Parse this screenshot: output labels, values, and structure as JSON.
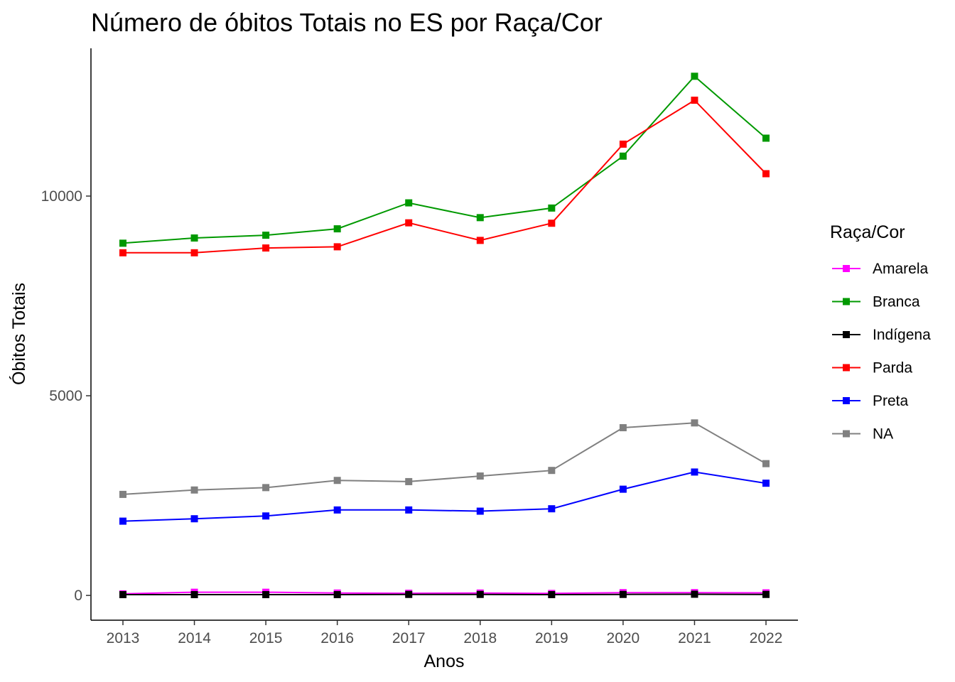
{
  "chart_data": {
    "type": "line",
    "title": "Número de óbitos Totais no ES por Raça/Cor",
    "xlabel": "Anos",
    "ylabel": "Óbitos Totais",
    "x": [
      2013,
      2014,
      2015,
      2016,
      2017,
      2018,
      2019,
      2020,
      2021,
      2022
    ],
    "y_ticks": [
      0,
      5000,
      10000
    ],
    "ylim": [
      -620,
      13700
    ],
    "grid": false,
    "legend": {
      "title": "Raça/Cor",
      "position": "right"
    },
    "series": [
      {
        "name": "Amarela",
        "color": "#FF00FF",
        "values": [
          40,
          80,
          80,
          60,
          55,
          60,
          50,
          70,
          70,
          65
        ]
      },
      {
        "name": "Branca",
        "color": "#009900",
        "values": [
          8820,
          8950,
          9020,
          9180,
          9830,
          9460,
          9700,
          11000,
          13000,
          11450
        ]
      },
      {
        "name": "Indígena",
        "color": "#000000",
        "values": [
          20,
          20,
          20,
          20,
          25,
          25,
          20,
          25,
          30,
          25
        ]
      },
      {
        "name": "Parda",
        "color": "#FF0000",
        "values": [
          8580,
          8580,
          8700,
          8730,
          9330,
          8890,
          9320,
          11300,
          12400,
          10560
        ]
      },
      {
        "name": "Preta",
        "color": "#0000FF",
        "values": [
          1860,
          1920,
          1990,
          2140,
          2140,
          2110,
          2170,
          2660,
          3090,
          2810
        ]
      },
      {
        "name": "NA",
        "color": "#808080",
        "values": [
          2530,
          2640,
          2700,
          2880,
          2850,
          2990,
          3130,
          4200,
          4320,
          3300
        ]
      }
    ]
  }
}
